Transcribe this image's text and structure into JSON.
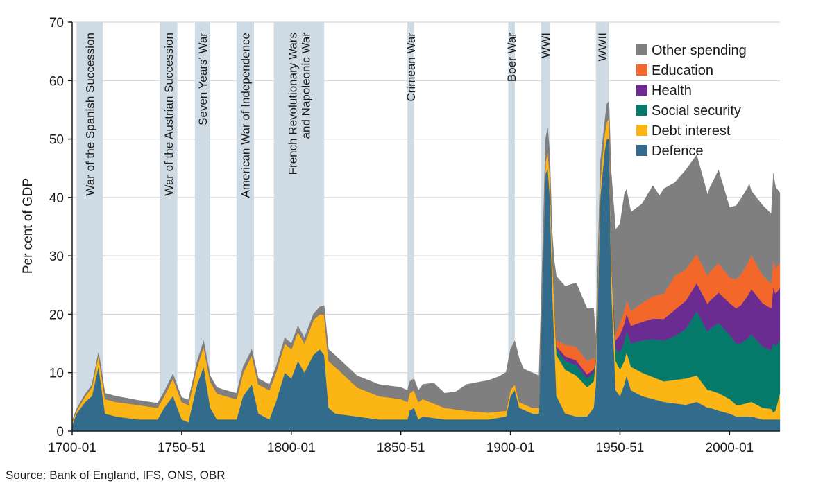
{
  "chart_data": {
    "type": "area",
    "stacked": true,
    "ylabel": "Per cent of GDP",
    "ylim": [
      0,
      70
    ],
    "yticks": [
      0,
      10,
      20,
      30,
      40,
      50,
      60,
      70
    ],
    "xlim": [
      1700,
      2023
    ],
    "xticks": [
      {
        "value": 1700,
        "label": "1700-01"
      },
      {
        "value": 1750,
        "label": "1750-51"
      },
      {
        "value": 1800,
        "label": "1800-01"
      },
      {
        "value": 1850,
        "label": "1850-51"
      },
      {
        "value": 1900,
        "label": "1900-01"
      },
      {
        "value": 1950,
        "label": "1950-51"
      },
      {
        "value": 2000,
        "label": "2000-01"
      }
    ],
    "wars": [
      {
        "label": "War of the Spanish Succession",
        "start": 1702,
        "end": 1714
      },
      {
        "label": "War of the Austrian Succession",
        "start": 1740,
        "end": 1748
      },
      {
        "label": "Seven Years' War",
        "start": 1756,
        "end": 1763
      },
      {
        "label": "American War of Independence",
        "start": 1775,
        "end": 1783
      },
      {
        "label": "French Revolutionary Wars and Napoleonic War",
        "lines": [
          "French Revolutionary Wars",
          "and  Napoleonic War"
        ],
        "start": 1792,
        "end": 1815
      },
      {
        "label": "Crimean War",
        "start": 1853,
        "end": 1856
      },
      {
        "label": "Boer War",
        "start": 1899,
        "end": 1902
      },
      {
        "label": "WWI",
        "start": 1914,
        "end": 1918
      },
      {
        "label": "WWII",
        "start": 1939,
        "end": 1945
      }
    ],
    "series": [
      {
        "name": "Defence",
        "color": "#336b8c",
        "x": [
          1700,
          1702,
          1706,
          1709,
          1712,
          1715,
          1720,
          1730,
          1739,
          1742,
          1746,
          1750,
          1753,
          1757,
          1760,
          1763,
          1766,
          1770,
          1775,
          1778,
          1782,
          1785,
          1790,
          1793,
          1797,
          1800,
          1803,
          1806,
          1810,
          1813,
          1815,
          1817,
          1820,
          1830,
          1840,
          1850,
          1853,
          1854,
          1856,
          1858,
          1860,
          1870,
          1880,
          1890,
          1898,
          1900,
          1902,
          1904,
          1910,
          1913,
          1915,
          1916,
          1917,
          1918,
          1919,
          1921,
          1925,
          1930,
          1935,
          1938,
          1939,
          1941,
          1943,
          1944,
          1945,
          1946,
          1948,
          1950,
          1952,
          1953,
          1955,
          1960,
          1970,
          1980,
          1985,
          1990,
          1991,
          1995,
          2000,
          2003,
          2005,
          2010,
          2015,
          2019,
          2020,
          2021,
          2023
        ],
        "values": [
          1,
          3,
          5,
          6,
          11,
          3,
          2.5,
          2,
          2,
          4,
          6,
          2,
          1.5,
          8,
          11,
          4,
          2,
          2,
          2,
          6,
          8,
          3,
          2,
          5,
          10,
          9,
          12,
          10,
          13,
          14,
          13,
          4,
          3,
          2.5,
          2,
          2,
          2,
          3.5,
          4,
          2,
          2.5,
          2,
          2,
          2,
          2.5,
          6,
          7,
          4,
          3,
          3,
          30,
          44,
          45,
          40,
          25,
          6,
          3,
          2.5,
          2.5,
          4,
          8,
          40,
          48,
          50,
          50,
          25,
          7,
          6,
          8,
          9.5,
          7,
          6,
          5,
          4.5,
          5,
          4,
          4,
          3.5,
          3,
          2.5,
          2.5,
          2.5,
          2,
          2,
          2,
          2,
          2
        ]
      },
      {
        "name": "Debt interest",
        "color": "#fbb616",
        "x": [
          1700,
          1702,
          1706,
          1709,
          1712,
          1715,
          1720,
          1730,
          1739,
          1742,
          1746,
          1750,
          1753,
          1757,
          1760,
          1763,
          1766,
          1770,
          1775,
          1778,
          1782,
          1785,
          1790,
          1793,
          1797,
          1800,
          1803,
          1806,
          1810,
          1813,
          1815,
          1817,
          1820,
          1830,
          1840,
          1850,
          1853,
          1854,
          1856,
          1858,
          1860,
          1870,
          1880,
          1890,
          1898,
          1900,
          1902,
          1904,
          1910,
          1913,
          1915,
          1916,
          1917,
          1918,
          1919,
          1921,
          1925,
          1930,
          1935,
          1938,
          1939,
          1941,
          1943,
          1944,
          1945,
          1946,
          1948,
          1950,
          1952,
          1953,
          1955,
          1960,
          1970,
          1980,
          1985,
          1990,
          1991,
          1995,
          2000,
          2003,
          2005,
          2010,
          2015,
          2019,
          2020,
          2021,
          2023
        ],
        "values": [
          0.5,
          0.5,
          1,
          1.5,
          2,
          2.5,
          2.5,
          2.5,
          2,
          2,
          3,
          3,
          3,
          3,
          3.5,
          4.5,
          4.5,
          4,
          3.5,
          4,
          5,
          5,
          5,
          5,
          5,
          5,
          5,
          5,
          6,
          6,
          7,
          8,
          8,
          5,
          4,
          3.5,
          3,
          3,
          3,
          3,
          3,
          2,
          1.5,
          1.2,
          1,
          1,
          1,
          1,
          1,
          1,
          1,
          2,
          3,
          4,
          6,
          7,
          7.5,
          7,
          5,
          4.5,
          4,
          3,
          3,
          3,
          3.5,
          4.5,
          5,
          4.5,
          4,
          4,
          4,
          4,
          3.5,
          4.5,
          4.5,
          3,
          3,
          3,
          2.5,
          2,
          2,
          2.5,
          2,
          1.8,
          1.2,
          1.5,
          4.5
        ]
      },
      {
        "name": "Social security",
        "color": "#057a6b",
        "x": [
          1700,
          1920,
          1921,
          1925,
          1930,
          1935,
          1938,
          1939,
          1946,
          1948,
          1950,
          1955,
          1960,
          1965,
          1970,
          1975,
          1980,
          1985,
          1990,
          1991,
          1995,
          2000,
          2003,
          2005,
          2008,
          2010,
          2015,
          2019,
          2020,
          2021,
          2023
        ],
        "values": [
          0,
          0,
          1,
          1.5,
          1.8,
          1.5,
          1.5,
          0,
          0,
          2,
          3,
          4,
          5.5,
          6.5,
          7,
          7.5,
          8.5,
          11,
          10,
          10.5,
          12,
          11,
          10.5,
          10.5,
          11,
          11.5,
          10.5,
          10,
          12,
          11,
          9
        ]
      },
      {
        "name": "Health",
        "color": "#6b2c91",
        "x": [
          1700,
          1920,
          1921,
          1925,
          1930,
          1935,
          1938,
          1939,
          1946,
          1948,
          1950,
          1955,
          1960,
          1965,
          1970,
          1975,
          1980,
          1985,
          1990,
          1991,
          1995,
          2000,
          2003,
          2005,
          2008,
          2010,
          2015,
          2019,
          2020,
          2021,
          2023
        ],
        "values": [
          0,
          0,
          0.5,
          0.8,
          0.8,
          0.7,
          0.6,
          0,
          0,
          1.5,
          3,
          3,
          3.2,
          3.5,
          3.7,
          4.5,
          4.8,
          4.8,
          4.7,
          4.8,
          5.2,
          5.4,
          6,
          6.5,
          7.2,
          7.8,
          7.4,
          7.2,
          9.5,
          9,
          9
        ]
      },
      {
        "name": "Education",
        "color": "#f3672a",
        "x": [
          1700,
          1920,
          1921,
          1925,
          1930,
          1935,
          1938,
          1939,
          1946,
          1948,
          1950,
          1955,
          1960,
          1965,
          1970,
          1975,
          1980,
          1985,
          1990,
          1991,
          1995,
          2000,
          2003,
          2005,
          2008,
          2010,
          2015,
          2019,
          2020,
          2021,
          2023
        ],
        "values": [
          0,
          0,
          1,
          2,
          2.3,
          2.3,
          2,
          0,
          0,
          1,
          2,
          2.5,
          3.2,
          3.8,
          4.3,
          5.8,
          5.4,
          5,
          4.8,
          5,
          5,
          4.4,
          5,
          5.2,
          5.5,
          5.8,
          4.8,
          4.2,
          4.5,
          4.3,
          4.3
        ]
      },
      {
        "name": "Other spending",
        "color": "#7f7f7f",
        "x": [
          1700,
          1712,
          1713,
          1715,
          1720,
          1730,
          1740,
          1750,
          1760,
          1770,
          1780,
          1790,
          1800,
          1810,
          1815,
          1817,
          1820,
          1830,
          1840,
          1850,
          1853,
          1856,
          1858,
          1860,
          1865,
          1870,
          1875,
          1880,
          1885,
          1890,
          1895,
          1900,
          1902,
          1904,
          1906,
          1910,
          1913,
          1914,
          1916,
          1917,
          1918,
          1919,
          1921,
          1925,
          1930,
          1935,
          1938,
          1939,
          1941,
          1943,
          1944,
          1945,
          1946,
          1948,
          1950,
          1952,
          1955,
          1960,
          1965,
          1968,
          1970,
          1975,
          1980,
          1985,
          1990,
          1995,
          2000,
          2005,
          2009,
          2010,
          2015,
          2019,
          2020,
          2021,
          2023
        ],
        "values": [
          0.3,
          0.5,
          1,
          1,
          1,
          0.8,
          0.8,
          0.8,
          1,
          1,
          1,
          1,
          1,
          1,
          1.5,
          2,
          2,
          2,
          2,
          2,
          2,
          2,
          2,
          2.5,
          3.5,
          2.5,
          3,
          4.5,
          5,
          5.5,
          6,
          7,
          7.5,
          7.5,
          6,
          6,
          5.5,
          5,
          4,
          4,
          3.5,
          3.5,
          11,
          10,
          11,
          9,
          8.5,
          4,
          3,
          2,
          3,
          3,
          15,
          18,
          17,
          20,
          17,
          17,
          19,
          17,
          18,
          16,
          17,
          17,
          14,
          16,
          12,
          13,
          13,
          11,
          12,
          12,
          15,
          14,
          12
        ]
      }
    ]
  },
  "source": "Source: Bank of England, IFS, ONS, OBR"
}
